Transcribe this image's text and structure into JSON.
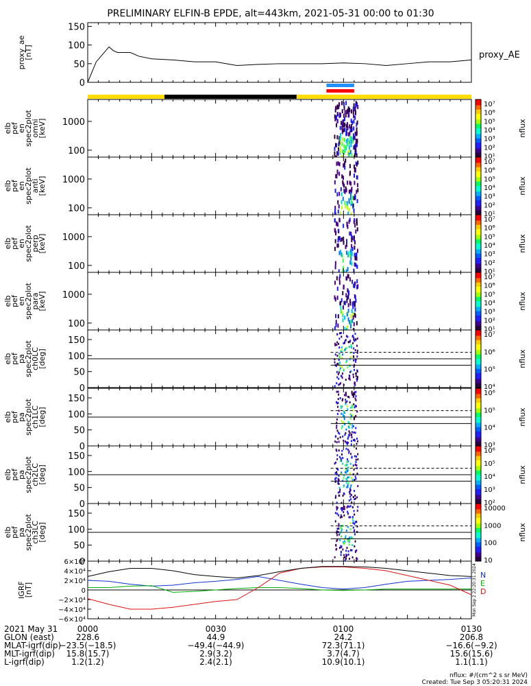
{
  "title": "PRELIMINARY ELFIN-B EPDE, alt=443km, 2021-05-31 00:00 to 01:30",
  "chart_data": [
    {
      "type": "line",
      "name": "proxy_ae",
      "ylabel": [
        "proxy_ae",
        "[nT]"
      ],
      "legend": "proxy_AE",
      "ylim": [
        0,
        160
      ],
      "yticks": [
        "150",
        "100",
        "50",
        "0"
      ],
      "tick_values": [
        150,
        100,
        50,
        0
      ],
      "x_minutes": [
        0,
        2,
        5,
        6,
        7,
        10,
        12,
        15,
        20,
        25,
        30,
        35,
        40,
        45,
        50,
        55,
        60,
        65,
        70,
        75,
        80,
        85,
        90
      ],
      "values": [
        0,
        55,
        95,
        85,
        80,
        80,
        70,
        63,
        60,
        55,
        55,
        45,
        48,
        50,
        50,
        50,
        52,
        50,
        45,
        50,
        55,
        55,
        60
      ]
    },
    {
      "type": "table",
      "name": "orbit_status_bars",
      "segments": [
        {
          "start_min": 0,
          "end_min": 18,
          "color": "#ffdd00"
        },
        {
          "start_min": 18,
          "end_min": 49,
          "color": "#000000"
        },
        {
          "start_min": 49,
          "end_min": 90,
          "color": "#ffdd00"
        }
      ],
      "markers": [
        {
          "start_min": 56,
          "end_min": 62.5,
          "color": "#1e8fff"
        },
        {
          "start_min": 56,
          "end_min": 62.5,
          "color": "#ff0000"
        }
      ]
    },
    {
      "type": "heatmap",
      "name": "elb_pef_en_spec2plot_omni",
      "ylabel": [
        "elb",
        "pef",
        "en",
        "spec2plot",
        "omni",
        "[keV]"
      ],
      "yticks": [
        "1000",
        "100"
      ],
      "colorbar": {
        "label": "nflux",
        "ticks": [
          "10⁷",
          "10⁶",
          "10⁵",
          "10⁴",
          "10³",
          "10²",
          "10¹"
        ]
      }
    },
    {
      "type": "heatmap",
      "name": "elb_pef_en_spec2plot_anti",
      "ylabel": [
        "elb",
        "pef",
        "en",
        "spec2plot",
        "anti",
        "[keV]"
      ],
      "yticks": [
        "1000",
        "100"
      ],
      "colorbar": {
        "label": "nflux",
        "ticks": [
          "10⁷",
          "10⁶",
          "10⁵",
          "10⁴",
          "10³",
          "10²",
          "10¹"
        ]
      }
    },
    {
      "type": "heatmap",
      "name": "elb_pef_en_spec2plot_perp",
      "ylabel": [
        "elb",
        "pef",
        "en",
        "spec2plot",
        "perp",
        "[keV]"
      ],
      "yticks": [
        "1000",
        "100"
      ],
      "colorbar": {
        "label": "nflux",
        "ticks": [
          "10⁷",
          "10⁶",
          "10⁵",
          "10⁴",
          "10³",
          "10²",
          "10¹"
        ]
      }
    },
    {
      "type": "heatmap",
      "name": "elb_pef_en_spec2plot_para",
      "ylabel": [
        "elb",
        "pef",
        "en",
        "spec2plot",
        "para",
        "[keV]"
      ],
      "yticks": [
        "1000",
        "100"
      ],
      "colorbar": {
        "label": "nflux",
        "ticks": [
          "10⁷",
          "10⁶",
          "10⁵",
          "10⁴",
          "10³",
          "10²",
          "10¹"
        ]
      }
    },
    {
      "type": "heatmap",
      "name": "elb_pef_pa_spec2plot_ch0LC",
      "ylabel": [
        "elb",
        "pef",
        "pa",
        "spec2plot",
        "ch0LC",
        "[deg]"
      ],
      "yticks": [
        "150",
        "100",
        "50",
        "0"
      ],
      "colorbar": {
        "label": "nflux",
        "ticks": [
          "10⁷",
          "10⁶",
          "10⁵",
          "10⁴"
        ]
      }
    },
    {
      "type": "heatmap",
      "name": "elb_pef_pa_spec2plot_ch1LC",
      "ylabel": [
        "elb",
        "pef",
        "pa",
        "spec2plot",
        "ch1LC",
        "[deg]"
      ],
      "yticks": [
        "150",
        "100",
        "50",
        "0"
      ],
      "colorbar": {
        "label": "nflux",
        "ticks": [
          "10⁶",
          "10⁵",
          "10⁴",
          "10³"
        ]
      }
    },
    {
      "type": "heatmap",
      "name": "elb_pef_pa_spec2plot_ch2LC",
      "ylabel": [
        "elb",
        "pef",
        "pa",
        "spec2plot",
        "ch2LC",
        "[deg]"
      ],
      "yticks": [
        "150",
        "100",
        "50",
        "0"
      ],
      "colorbar": {
        "label": "nflux",
        "ticks": [
          "10⁶",
          "10⁵",
          "10⁴",
          "10³",
          "10²"
        ]
      }
    },
    {
      "type": "heatmap",
      "name": "elb_pef_pa_spec2plot_ch3LC",
      "ylabel": [
        "elb",
        "pef",
        "pa",
        "spec2plot",
        "ch3LC",
        "[deg]"
      ],
      "yticks": [
        "150",
        "100",
        "50",
        "0"
      ],
      "colorbar": {
        "label": "nflux",
        "ticks": [
          "10000",
          "1000",
          "100",
          "10"
        ]
      }
    },
    {
      "type": "line",
      "name": "IGRF",
      "ylabel": [
        "IGRF",
        "[nT]"
      ],
      "ylim": [
        -60000,
        60000
      ],
      "yticks": [
        "6×10⁴",
        "4×10⁴",
        "2×10⁴",
        "0",
        "−2×10⁴",
        "−4×10⁴",
        "−6×10⁴"
      ],
      "tick_values": [
        60000,
        40000,
        20000,
        0,
        -20000,
        -40000,
        -60000
      ],
      "legend": [
        "N",
        "E",
        "D"
      ],
      "x_minutes": [
        0,
        5,
        10,
        15,
        20,
        25,
        30,
        35,
        40,
        45,
        50,
        55,
        60,
        65,
        70,
        75,
        80,
        85,
        90
      ],
      "series": [
        {
          "name": "N",
          "color": "#1030d0",
          "values": [
            20000,
            18000,
            12000,
            8000,
            10000,
            15000,
            18000,
            22000,
            28000,
            20000,
            12000,
            5000,
            2000,
            5000,
            12000,
            18000,
            20000,
            22000,
            25000
          ]
        },
        {
          "name": "E",
          "color": "#00b000",
          "values": [
            5000,
            5000,
            8000,
            9000,
            -5000,
            -3000,
            0,
            3000,
            5000,
            5000,
            3000,
            0,
            -1000,
            0,
            2000,
            2000,
            2000,
            2000,
            2000
          ]
        },
        {
          "name": "D",
          "color": "#e01010",
          "values": [
            -18000,
            -30000,
            -40000,
            -40000,
            -36000,
            -30000,
            -24000,
            -20000,
            5000,
            35000,
            45000,
            48000,
            48000,
            45000,
            40000,
            30000,
            20000,
            10000,
            -10000
          ]
        },
        {
          "name": "F",
          "color": "#000000",
          "values": [
            28000,
            38000,
            45000,
            45000,
            40000,
            32000,
            28000,
            25000,
            30000,
            38000,
            45000,
            49000,
            49000,
            48000,
            45000,
            40000,
            35000,
            30000,
            28000
          ]
        }
      ]
    }
  ],
  "x_axis_table": {
    "rows": [
      {
        "label": "2021 May 31",
        "values": [
          "0000",
          "0030",
          "0100",
          "0130"
        ]
      },
      {
        "label": "GLON (east)",
        "values": [
          "228.6",
          "44.9",
          "24.2",
          "206.8"
        ]
      },
      {
        "label": "MLAT-igrf(dip)",
        "values": [
          "−23.5(−18.5)",
          "−49.4(−44.9)",
          "72.3(71.1)",
          "−16.6(−9.2)"
        ]
      },
      {
        "label": "MLT-igrf(dip)",
        "values": [
          "15.8(15.7)",
          "2.9(3.2)",
          "3.7(4.7)",
          "15.6(15.6)"
        ]
      },
      {
        "label": "L-igrf(dip)",
        "values": [
          "1.2(1.2)",
          "2.4(2.1)",
          "10.9(10.1)",
          "1.1(1.1)"
        ]
      }
    ]
  },
  "footer": {
    "units": "nflux: #/(cm^2 s sr MeV)",
    "created": "Created: Tue Sep  3 05:20:31 2024",
    "side_stamp": "Mon Sep  2 22:20:31 2024"
  }
}
